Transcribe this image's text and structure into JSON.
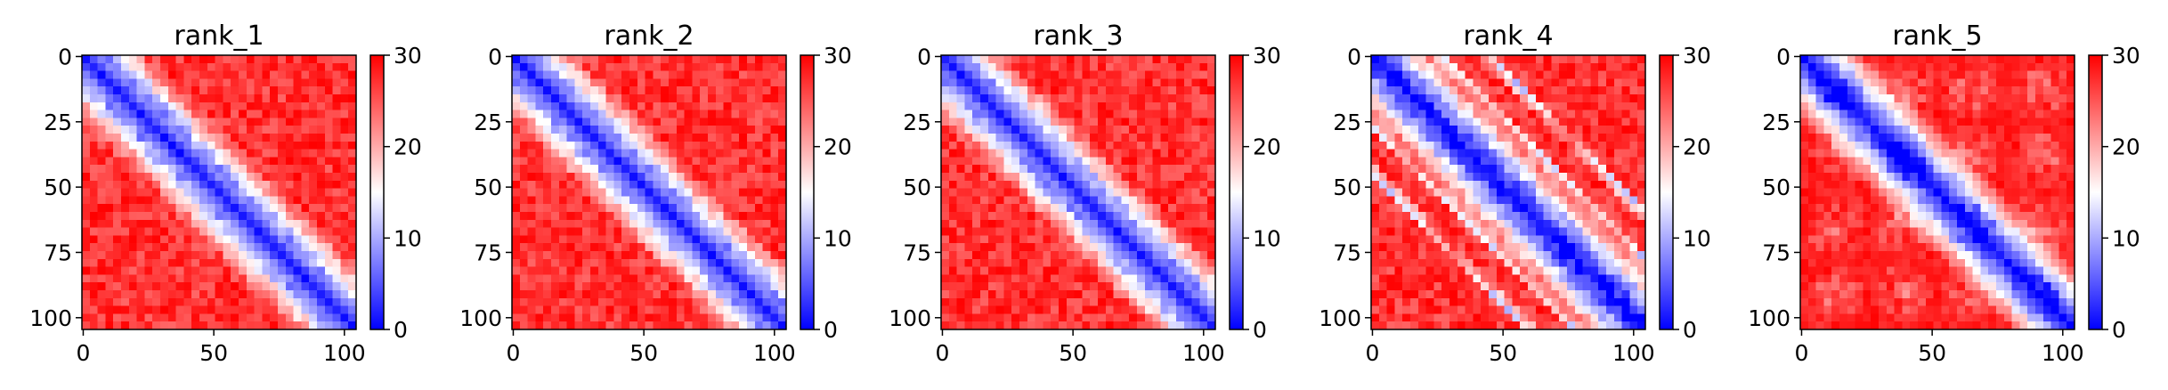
{
  "colors": {
    "low": "#0000ff",
    "mid": "#ffffff",
    "high": "#ff0000",
    "axis": "#000000"
  },
  "chart_data": [
    {
      "type": "heatmap",
      "title": "rank_1",
      "pattern": "diag",
      "matrix_size": 105,
      "xticks": [
        0,
        50,
        100
      ],
      "yticks": [
        0,
        25,
        50,
        75,
        100
      ],
      "colorbar": {
        "range": [
          0,
          30
        ],
        "ticks": [
          0,
          10,
          20,
          30
        ],
        "cmap": "bwr"
      }
    },
    {
      "type": "heatmap",
      "title": "rank_2",
      "pattern": "diag",
      "matrix_size": 105,
      "xticks": [
        0,
        50,
        100
      ],
      "yticks": [
        0,
        25,
        50,
        75,
        100
      ],
      "colorbar": {
        "range": [
          0,
          30
        ],
        "ticks": [
          0,
          10,
          20,
          30
        ],
        "cmap": "bwr"
      }
    },
    {
      "type": "heatmap",
      "title": "rank_3",
      "pattern": "diag",
      "matrix_size": 105,
      "xticks": [
        0,
        50,
        100
      ],
      "yticks": [
        0,
        25,
        50,
        75,
        100
      ],
      "colorbar": {
        "range": [
          0,
          30
        ],
        "ticks": [
          0,
          10,
          20,
          30
        ],
        "cmap": "bwr"
      }
    },
    {
      "type": "heatmap",
      "title": "rank_4",
      "pattern": "bands",
      "matrix_size": 105,
      "xticks": [
        0,
        50,
        100
      ],
      "yticks": [
        0,
        25,
        50,
        75,
        100
      ],
      "colorbar": {
        "range": [
          0,
          30
        ],
        "ticks": [
          0,
          10,
          20,
          30
        ],
        "cmap": "bwr"
      }
    },
    {
      "type": "heatmap",
      "title": "rank_5",
      "pattern": "blobs",
      "matrix_size": 105,
      "xticks": [
        0,
        50,
        100
      ],
      "yticks": [
        0,
        25,
        50,
        75,
        100
      ],
      "colorbar": {
        "range": [
          0,
          30
        ],
        "ticks": [
          0,
          10,
          20,
          30
        ],
        "cmap": "bwr"
      }
    }
  ]
}
